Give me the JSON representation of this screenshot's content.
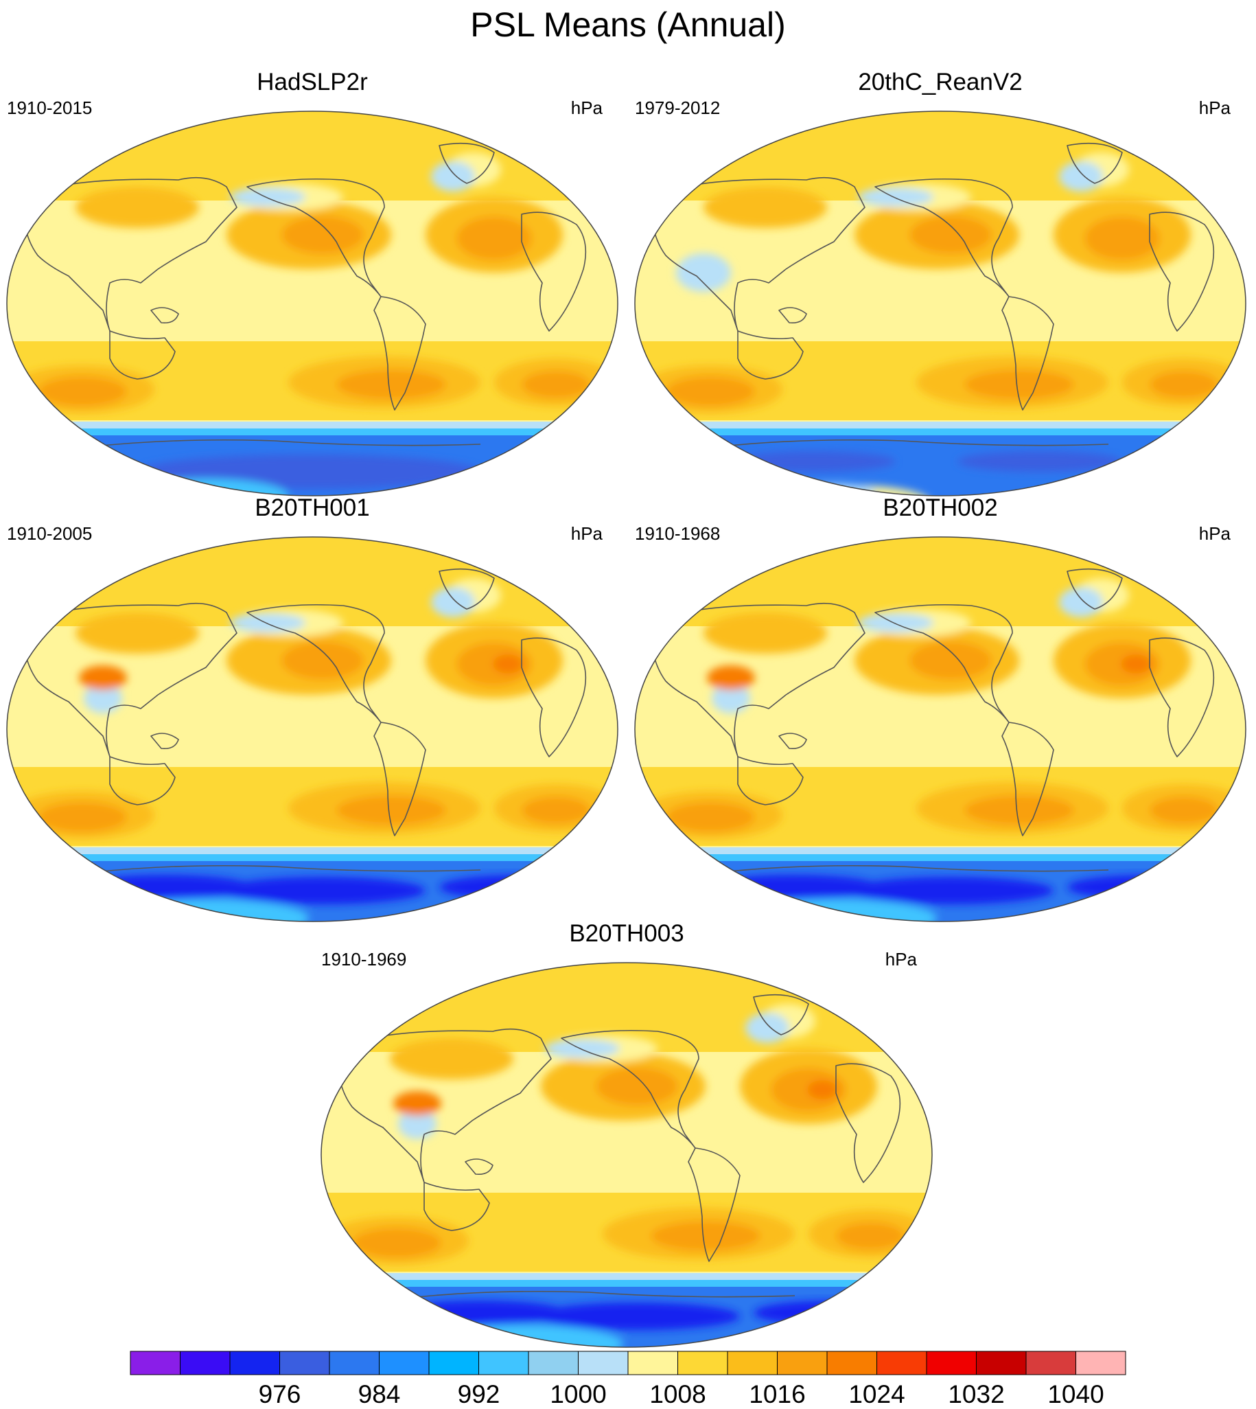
{
  "figure": {
    "title": "PSL Means (Annual)",
    "units": "hPa",
    "projection": "robinson",
    "central_longitude": 180
  },
  "panels": [
    {
      "title": "HadSLP2r",
      "period": "1910-2015",
      "units": "hPa",
      "variant": "obs"
    },
    {
      "title": "20thC_ReanV2",
      "period": "1979-2012",
      "units": "hPa",
      "variant": "rean"
    },
    {
      "title": "B20TH001",
      "period": "1910-2005",
      "units": "hPa",
      "variant": "model"
    },
    {
      "title": "B20TH002",
      "period": "1910-1968",
      "units": "hPa",
      "variant": "model"
    },
    {
      "title": "B20TH003",
      "period": "1910-1969",
      "units": "hPa",
      "variant": "model"
    }
  ],
  "colorbar": {
    "labels": [
      "976",
      "984",
      "992",
      "1000",
      "1008",
      "1016",
      "1024",
      "1032",
      "1040"
    ],
    "colors": [
      "#8a1ee8",
      "#3a0cf5",
      "#1424f0",
      "#3a5ee0",
      "#2c78f0",
      "#1e90ff",
      "#00b4ff",
      "#40c4ff",
      "#90d0f0",
      "#b8e0f8",
      "#fff59a",
      "#fdd835",
      "#fbbd1a",
      "#f9a00f",
      "#f87d00",
      "#f83c05",
      "#f00000",
      "#c80000",
      "#d83c3c",
      "#ffb4b4"
    ]
  },
  "chart_data": {
    "type": "map",
    "title": "PSL Means (Annual)",
    "colorbar_levels": [
      976,
      984,
      992,
      1000,
      1008,
      1016,
      1024,
      1032,
      1040
    ],
    "colors": {
      "deep_low": "#1424f0",
      "low": "#2c78f0",
      "mid_low": "#40c4ff",
      "near_1008": "#b8e0f8",
      "base": "#fff59a",
      "1016": "#fdd835",
      "1020": "#fbbd1a",
      "1024": "#f9a00f",
      "1028": "#f87d00",
      "coast": "#555555"
    }
  }
}
